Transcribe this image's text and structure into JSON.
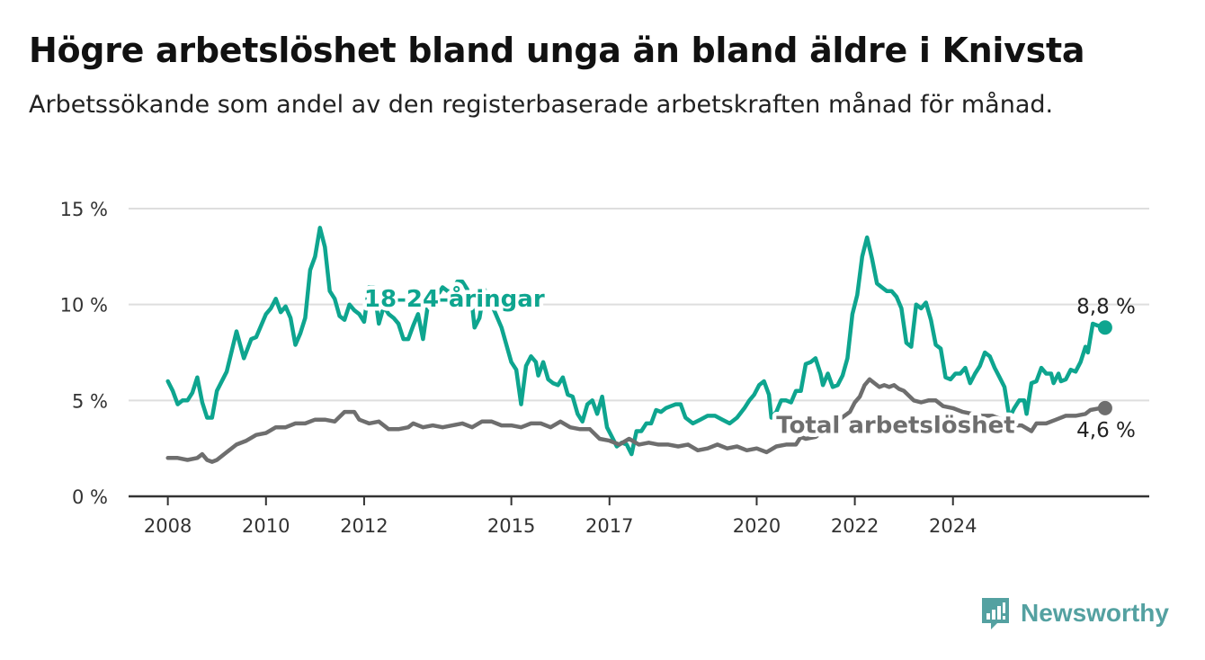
{
  "title": "Högre arbetslöshet bland unga än bland äldre i Knivsta",
  "subtitle": "Arbetssökande som andel av den registerbaserade arbetskraften månad för månad.",
  "brand": {
    "name": "Newsworthy",
    "color": "#54a1a1",
    "icon": "newsworthy-logo-icon"
  },
  "chart_data": {
    "type": "line",
    "title": "Högre arbetslöshet bland unga än bland äldre i Knivsta",
    "subtitle": "Arbetssökande som andel av den registerbaserade arbetskraften månad för månad.",
    "xlabel": "",
    "ylabel": "",
    "ylim": [
      0,
      15
    ],
    "y_ticks": [
      0,
      5,
      10,
      15
    ],
    "y_tick_labels": [
      "0 %",
      "5 %",
      "10 %",
      "15 %"
    ],
    "x_ticks": [
      2008,
      2010,
      2012,
      2015,
      2017,
      2020,
      2022,
      2024
    ],
    "x_tick_labels": [
      "2008",
      "2010",
      "2012",
      "2015",
      "2017",
      "2020",
      "2022",
      "2024"
    ],
    "grid": true,
    "legend": "inline labels",
    "series": [
      {
        "name": "18-24-åringar",
        "color": "#0ea58f",
        "label_position": [
          2012.0,
          9.9
        ],
        "end_label": "8,8 %",
        "points": [
          [
            2008.0,
            6.0
          ],
          [
            2008.1,
            5.5
          ],
          [
            2008.2,
            4.8
          ],
          [
            2008.3,
            5.0
          ],
          [
            2008.4,
            5.0
          ],
          [
            2008.5,
            5.4
          ],
          [
            2008.6,
            6.2
          ],
          [
            2008.7,
            4.9
          ],
          [
            2008.8,
            4.1
          ],
          [
            2008.9,
            4.1
          ],
          [
            2009.0,
            5.5
          ],
          [
            2009.2,
            6.5
          ],
          [
            2009.4,
            8.6
          ],
          [
            2009.55,
            7.2
          ],
          [
            2009.7,
            8.2
          ],
          [
            2009.8,
            8.3
          ],
          [
            2010.0,
            9.5
          ],
          [
            2010.1,
            9.8
          ],
          [
            2010.2,
            10.3
          ],
          [
            2010.3,
            9.6
          ],
          [
            2010.4,
            9.9
          ],
          [
            2010.5,
            9.3
          ],
          [
            2010.6,
            7.9
          ],
          [
            2010.7,
            8.5
          ],
          [
            2010.8,
            9.3
          ],
          [
            2010.9,
            11.8
          ],
          [
            2011.0,
            12.5
          ],
          [
            2011.1,
            14.0
          ],
          [
            2011.2,
            13.0
          ],
          [
            2011.3,
            10.7
          ],
          [
            2011.4,
            10.3
          ],
          [
            2011.5,
            9.4
          ],
          [
            2011.6,
            9.2
          ],
          [
            2011.7,
            10.0
          ],
          [
            2011.8,
            9.7
          ],
          [
            2011.9,
            9.5
          ],
          [
            2012.0,
            9.1
          ],
          [
            2012.1,
            10.9
          ],
          [
            2012.2,
            10.9
          ],
          [
            2012.3,
            9.0
          ],
          [
            2012.4,
            9.9
          ],
          [
            2012.5,
            9.5
          ],
          [
            2012.6,
            9.3
          ],
          [
            2012.7,
            9.0
          ],
          [
            2012.8,
            8.2
          ],
          [
            2012.9,
            8.2
          ],
          [
            2013.0,
            8.9
          ],
          [
            2013.1,
            9.5
          ],
          [
            2013.2,
            8.2
          ],
          [
            2013.3,
            10.0
          ],
          [
            2013.5,
            10.5
          ],
          [
            2013.6,
            10.9
          ],
          [
            2013.7,
            10.7
          ],
          [
            2013.8,
            10.7
          ],
          [
            2013.9,
            11.2
          ],
          [
            2014.0,
            11.2
          ],
          [
            2014.1,
            10.8
          ],
          [
            2014.2,
            10.0
          ],
          [
            2014.25,
            8.8
          ],
          [
            2014.35,
            9.3
          ],
          [
            2014.45,
            10.8
          ],
          [
            2014.6,
            10.0
          ],
          [
            2014.8,
            8.8
          ],
          [
            2015.0,
            7.0
          ],
          [
            2015.1,
            6.6
          ],
          [
            2015.2,
            4.8
          ],
          [
            2015.3,
            6.8
          ],
          [
            2015.4,
            7.3
          ],
          [
            2015.5,
            7.0
          ],
          [
            2015.55,
            6.3
          ],
          [
            2015.65,
            7.0
          ],
          [
            2015.75,
            6.1
          ],
          [
            2015.85,
            5.9
          ],
          [
            2015.95,
            5.8
          ],
          [
            2016.05,
            6.2
          ],
          [
            2016.15,
            5.3
          ],
          [
            2016.25,
            5.2
          ],
          [
            2016.35,
            4.3
          ],
          [
            2016.45,
            3.9
          ],
          [
            2016.55,
            4.8
          ],
          [
            2016.65,
            5.0
          ],
          [
            2016.75,
            4.3
          ],
          [
            2016.85,
            5.2
          ],
          [
            2016.95,
            3.6
          ],
          [
            2017.05,
            3.1
          ],
          [
            2017.15,
            2.6
          ],
          [
            2017.25,
            2.8
          ],
          [
            2017.35,
            2.7
          ],
          [
            2017.45,
            2.2
          ],
          [
            2017.55,
            3.4
          ],
          [
            2017.65,
            3.4
          ],
          [
            2017.75,
            3.8
          ],
          [
            2017.85,
            3.8
          ],
          [
            2017.95,
            4.5
          ],
          [
            2018.05,
            4.4
          ],
          [
            2018.15,
            4.6
          ],
          [
            2018.25,
            4.7
          ],
          [
            2018.35,
            4.8
          ],
          [
            2018.45,
            4.8
          ],
          [
            2018.55,
            4.1
          ],
          [
            2018.7,
            3.8
          ],
          [
            2018.85,
            4.0
          ],
          [
            2019.0,
            4.2
          ],
          [
            2019.15,
            4.2
          ],
          [
            2019.3,
            4.0
          ],
          [
            2019.45,
            3.8
          ],
          [
            2019.6,
            4.1
          ],
          [
            2019.75,
            4.6
          ],
          [
            2019.85,
            5.0
          ],
          [
            2019.95,
            5.3
          ],
          [
            2020.05,
            5.8
          ],
          [
            2020.15,
            6.0
          ],
          [
            2020.25,
            5.3
          ],
          [
            2020.3,
            4.1
          ],
          [
            2020.4,
            4.4
          ],
          [
            2020.5,
            5.0
          ],
          [
            2020.6,
            5.0
          ],
          [
            2020.7,
            4.9
          ],
          [
            2020.8,
            5.5
          ],
          [
            2020.9,
            5.5
          ],
          [
            2021.0,
            6.9
          ],
          [
            2021.1,
            7.0
          ],
          [
            2021.2,
            7.2
          ],
          [
            2021.3,
            6.4
          ],
          [
            2021.35,
            5.8
          ],
          [
            2021.45,
            6.4
          ],
          [
            2021.55,
            5.7
          ],
          [
            2021.65,
            5.8
          ],
          [
            2021.75,
            6.3
          ],
          [
            2021.85,
            7.2
          ],
          [
            2021.95,
            9.5
          ],
          [
            2022.05,
            10.5
          ],
          [
            2022.15,
            12.5
          ],
          [
            2022.25,
            13.5
          ],
          [
            2022.35,
            12.4
          ],
          [
            2022.45,
            11.1
          ],
          [
            2022.55,
            10.9
          ],
          [
            2022.65,
            10.7
          ],
          [
            2022.75,
            10.7
          ],
          [
            2022.85,
            10.4
          ],
          [
            2022.95,
            9.8
          ],
          [
            2023.05,
            8.0
          ],
          [
            2023.15,
            7.8
          ],
          [
            2023.25,
            10.0
          ],
          [
            2023.35,
            9.8
          ],
          [
            2023.45,
            10.1
          ],
          [
            2023.55,
            9.2
          ],
          [
            2023.65,
            7.9
          ],
          [
            2023.75,
            7.7
          ],
          [
            2023.85,
            6.2
          ],
          [
            2023.95,
            6.1
          ],
          [
            2024.05,
            6.4
          ],
          [
            2024.15,
            6.4
          ],
          [
            2024.25,
            6.7
          ],
          [
            2024.35,
            5.9
          ],
          [
            2024.45,
            6.4
          ],
          [
            2024.55,
            6.8
          ],
          [
            2024.65,
            7.5
          ],
          [
            2024.75,
            7.3
          ],
          [
            2024.85,
            6.7
          ],
          [
            2024.95,
            6.2
          ],
          [
            2025.05,
            5.7
          ],
          [
            2025.15,
            4.1
          ],
          [
            2025.25,
            4.6
          ],
          [
            2025.35,
            5.0
          ],
          [
            2025.45,
            5.0
          ],
          [
            2025.5,
            4.3
          ],
          [
            2025.6,
            5.9
          ],
          [
            2025.7,
            6.0
          ],
          [
            2025.8,
            6.7
          ],
          [
            2025.9,
            6.4
          ],
          [
            2026.0,
            6.4
          ],
          [
            2026.05,
            5.9
          ],
          [
            2026.15,
            6.4
          ],
          [
            2026.2,
            6.0
          ],
          [
            2026.3,
            6.1
          ],
          [
            2026.4,
            6.6
          ],
          [
            2026.5,
            6.5
          ],
          [
            2026.6,
            7.0
          ],
          [
            2026.7,
            7.8
          ],
          [
            2026.75,
            7.5
          ],
          [
            2026.85,
            9.0
          ],
          [
            2026.95,
            8.9
          ],
          [
            2027.1,
            8.8
          ]
        ]
      },
      {
        "name": "Total arbetslöshet",
        "color": "#6e6e6e",
        "label_position": [
          2020.4,
          3.3
        ],
        "end_label": "4,6 %",
        "points": [
          [
            2008.0,
            2.0
          ],
          [
            2008.2,
            2.0
          ],
          [
            2008.4,
            1.9
          ],
          [
            2008.6,
            2.0
          ],
          [
            2008.7,
            2.2
          ],
          [
            2008.8,
            1.9
          ],
          [
            2008.9,
            1.8
          ],
          [
            2009.0,
            1.9
          ],
          [
            2009.2,
            2.3
          ],
          [
            2009.4,
            2.7
          ],
          [
            2009.6,
            2.9
          ],
          [
            2009.8,
            3.2
          ],
          [
            2010.0,
            3.3
          ],
          [
            2010.2,
            3.6
          ],
          [
            2010.4,
            3.6
          ],
          [
            2010.6,
            3.8
          ],
          [
            2010.8,
            3.8
          ],
          [
            2011.0,
            4.0
          ],
          [
            2011.2,
            4.0
          ],
          [
            2011.4,
            3.9
          ],
          [
            2011.6,
            4.4
          ],
          [
            2011.8,
            4.4
          ],
          [
            2011.9,
            4.0
          ],
          [
            2012.1,
            3.8
          ],
          [
            2012.3,
            3.9
          ],
          [
            2012.5,
            3.5
          ],
          [
            2012.7,
            3.5
          ],
          [
            2012.9,
            3.6
          ],
          [
            2013.0,
            3.8
          ],
          [
            2013.2,
            3.6
          ],
          [
            2013.4,
            3.7
          ],
          [
            2013.6,
            3.6
          ],
          [
            2013.8,
            3.7
          ],
          [
            2014.0,
            3.8
          ],
          [
            2014.2,
            3.6
          ],
          [
            2014.4,
            3.9
          ],
          [
            2014.6,
            3.9
          ],
          [
            2014.8,
            3.7
          ],
          [
            2015.0,
            3.7
          ],
          [
            2015.2,
            3.6
          ],
          [
            2015.4,
            3.8
          ],
          [
            2015.6,
            3.8
          ],
          [
            2015.8,
            3.6
          ],
          [
            2016.0,
            3.9
          ],
          [
            2016.2,
            3.6
          ],
          [
            2016.4,
            3.5
          ],
          [
            2016.6,
            3.5
          ],
          [
            2016.8,
            3.0
          ],
          [
            2017.0,
            2.9
          ],
          [
            2017.2,
            2.7
          ],
          [
            2017.4,
            3.0
          ],
          [
            2017.6,
            2.7
          ],
          [
            2017.8,
            2.8
          ],
          [
            2018.0,
            2.7
          ],
          [
            2018.2,
            2.7
          ],
          [
            2018.4,
            2.6
          ],
          [
            2018.6,
            2.7
          ],
          [
            2018.8,
            2.4
          ],
          [
            2019.0,
            2.5
          ],
          [
            2019.2,
            2.7
          ],
          [
            2019.4,
            2.5
          ],
          [
            2019.6,
            2.6
          ],
          [
            2019.8,
            2.4
          ],
          [
            2020.0,
            2.5
          ],
          [
            2020.2,
            2.3
          ],
          [
            2020.4,
            2.6
          ],
          [
            2020.6,
            2.7
          ],
          [
            2020.8,
            2.7
          ],
          [
            2020.9,
            3.1
          ],
          [
            2021.0,
            3.0
          ],
          [
            2021.2,
            3.1
          ],
          [
            2021.9,
            4.4
          ],
          [
            2022.0,
            4.9
          ],
          [
            2022.1,
            5.2
          ],
          [
            2022.2,
            5.8
          ],
          [
            2022.3,
            6.1
          ],
          [
            2022.4,
            5.9
          ],
          [
            2022.5,
            5.7
          ],
          [
            2022.6,
            5.8
          ],
          [
            2022.7,
            5.7
          ],
          [
            2022.8,
            5.8
          ],
          [
            2022.9,
            5.6
          ],
          [
            2023.0,
            5.5
          ],
          [
            2023.2,
            5.0
          ],
          [
            2023.35,
            4.9
          ],
          [
            2023.5,
            5.0
          ],
          [
            2023.65,
            5.0
          ],
          [
            2023.8,
            4.7
          ],
          [
            2024.0,
            4.6
          ],
          [
            2024.2,
            4.4
          ],
          [
            2024.4,
            4.3
          ],
          [
            2024.6,
            4.2
          ],
          [
            2024.8,
            4.2
          ],
          [
            2025.0,
            4.0
          ],
          [
            2025.2,
            3.7
          ],
          [
            2025.4,
            3.7
          ],
          [
            2025.6,
            3.4
          ],
          [
            2025.7,
            3.8
          ],
          [
            2025.9,
            3.8
          ],
          [
            2026.1,
            4.0
          ],
          [
            2026.3,
            4.2
          ],
          [
            2026.5,
            4.2
          ],
          [
            2026.7,
            4.3
          ],
          [
            2026.8,
            4.5
          ],
          [
            2027.0,
            4.6
          ],
          [
            2027.1,
            4.6
          ]
        ]
      }
    ]
  }
}
